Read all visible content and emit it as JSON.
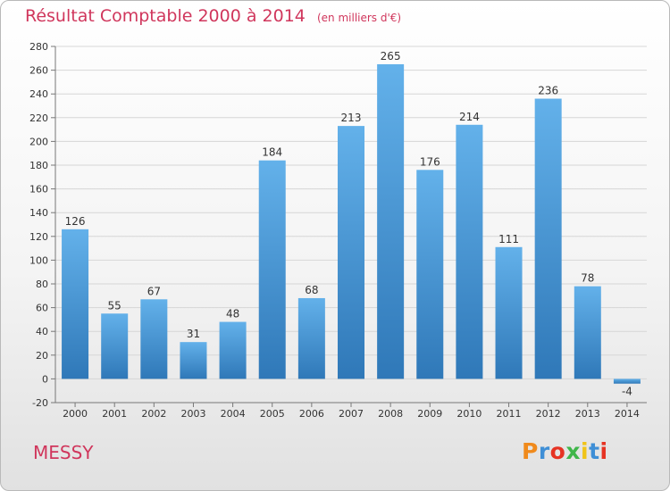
{
  "title": "Résultat Comptable 2000 à 2014",
  "subtitle": "(en milliers d'€)",
  "commune": "MESSY",
  "logo_text": "Proxiti",
  "logo_colors": [
    "#f08a1c",
    "#3f8fd6",
    "#e63323",
    "#3fb64a",
    "#f0c419",
    "#3f8fd6",
    "#e63323"
  ],
  "colors": {
    "title": "#d0365c",
    "bar_light": "#63b1ea",
    "bar_dark": "#2f78b8",
    "grid": "#d6d6d6"
  },
  "chart_data": {
    "type": "bar",
    "categories": [
      "2000",
      "2001",
      "2002",
      "2003",
      "2004",
      "2005",
      "2006",
      "2007",
      "2008",
      "2009",
      "2010",
      "2011",
      "2012",
      "2013",
      "2014"
    ],
    "values": [
      126,
      55,
      67,
      31,
      48,
      184,
      68,
      213,
      265,
      176,
      214,
      111,
      236,
      78,
      -4
    ],
    "title": "Résultat Comptable 2000 à 2014",
    "subtitle": "(en milliers d'€)",
    "ylim": [
      -20,
      280
    ],
    "yticks": [
      -20,
      0,
      20,
      40,
      60,
      80,
      100,
      120,
      140,
      160,
      180,
      200,
      220,
      240,
      260,
      280
    ],
    "grid": true,
    "legend": false
  }
}
